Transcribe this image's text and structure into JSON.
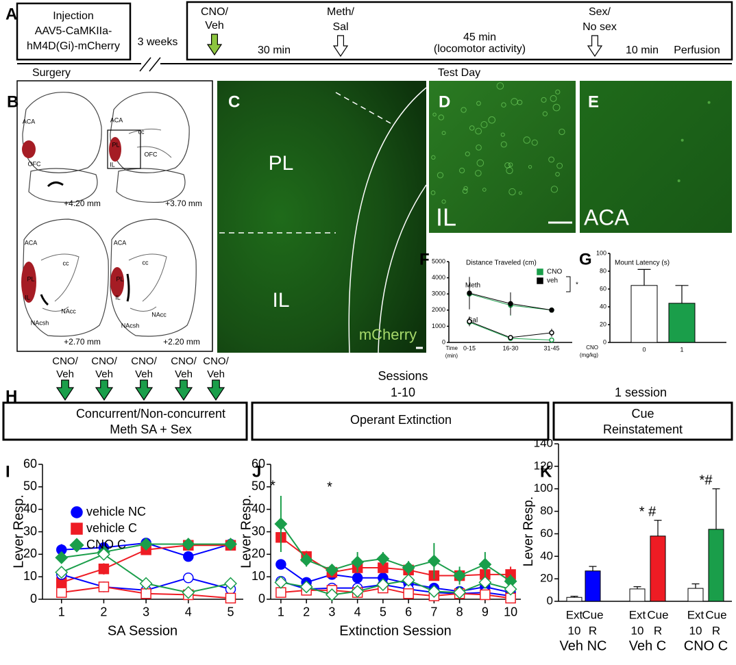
{
  "panels": [
    "A",
    "B",
    "C",
    "D",
    "E",
    "F",
    "G",
    "H",
    "I",
    "J",
    "K"
  ],
  "timeline": {
    "injection": [
      "Injection",
      "AAV5-CaMKIIa-",
      "hM4D(Gi)-mCherry"
    ],
    "gap": "3 weeks",
    "treatment": [
      "CNO/",
      "Veh"
    ],
    "drug": [
      "Meth/",
      "Sal"
    ],
    "test": [
      "Sex/",
      "No sex"
    ],
    "durations": [
      "30 min",
      "45 min",
      "(locomotor activity)",
      "10 min"
    ],
    "end": "Perfusion",
    "phases": [
      "Surgery",
      "Test Day"
    ]
  },
  "atlas": {
    "sections": [
      {
        "level": "+4.20 mm",
        "regions": [
          "ACA",
          "OFC"
        ]
      },
      {
        "level": "+3.70 mm",
        "regions": [
          "ACA",
          "cc",
          "PL",
          "OFC",
          "IL"
        ]
      },
      {
        "level": "+2.70 mm",
        "regions": [
          "ACA",
          "cc",
          "PL",
          "IL",
          "NAcc",
          "NAcsh"
        ]
      },
      {
        "level": "+2.20 mm",
        "regions": [
          "ACA",
          "cc",
          "PL",
          "IL",
          "NAcc",
          "NAcsh"
        ]
      }
    ]
  },
  "micrographs": {
    "C": [
      "PL",
      "IL",
      "mCherry"
    ],
    "D": [
      "IL"
    ],
    "E": [
      "ACA"
    ]
  },
  "schedule": {
    "treatment": [
      "CNO/",
      "Veh"
    ],
    "sessions": [
      "Sessions",
      "1-10"
    ],
    "single": "1 session",
    "phases": [
      [
        "Concurrent/Non-concurrent",
        "Meth SA + Sex"
      ],
      [
        "Operant Extinction"
      ],
      [
        "Cue",
        "Reinstatement"
      ]
    ]
  },
  "chart_data": [
    {
      "type": "line",
      "title": "Distance Traveled (cm)",
      "categories": [
        "0-15",
        "16-30",
        "31-45"
      ],
      "xlabel": [
        "Time",
        "(min)"
      ],
      "ylim": [
        0,
        5000
      ],
      "yticks": [
        0,
        1000,
        2000,
        3000,
        4000,
        5000
      ],
      "series": [
        {
          "name": "CNO",
          "color": "#1a9e4a",
          "marker": "circle",
          "fill": "solid",
          "values": [
            3000,
            2300,
            2000
          ],
          "errors": [
            500,
            650,
            100
          ]
        },
        {
          "name": "veh",
          "color": "#000000",
          "marker": "circle",
          "fill": "solid",
          "values": [
            3050,
            2400,
            2000
          ],
          "errors": [
            1000,
            700,
            150
          ]
        },
        {
          "color": "#1a9e4a",
          "marker": "circle",
          "fill": "open",
          "values": [
            1250,
            250,
            150
          ],
          "errors": [
            200,
            100,
            50
          ]
        },
        {
          "color": "#000000",
          "marker": "circle",
          "fill": "open",
          "values": [
            1300,
            300,
            600
          ],
          "errors": [
            300,
            100,
            250
          ]
        }
      ],
      "annotations": [
        "Meth",
        "Sal",
        "*"
      ]
    },
    {
      "type": "bar",
      "title": "Mount Latency (s)",
      "categories": [
        "0",
        "1"
      ],
      "xlabel": [
        "CNO",
        "(mg/kg)"
      ],
      "values": [
        64,
        44
      ],
      "errors": [
        18,
        20
      ],
      "colors": [
        "#ffffff",
        "#1a9e4a"
      ],
      "ylim": [
        0,
        100
      ],
      "yticks": [
        0,
        20,
        40,
        60,
        80,
        100
      ]
    },
    {
      "type": "line",
      "x": [
        1,
        2,
        3,
        4,
        5
      ],
      "xlim": [
        0.55,
        5.3
      ],
      "xticks": [
        1,
        2,
        3,
        4,
        5
      ],
      "xlabel": "SA Session",
      "ylabel": "Lever Resp.",
      "ylim": [
        0,
        60
      ],
      "yticks": [
        0,
        10,
        20,
        30,
        40,
        50,
        60
      ],
      "series": [
        {
          "name": "vehicle NC",
          "color": "#0000ff",
          "marker": "circle",
          "fill": "solid",
          "values": [
            22,
            23,
            25,
            19,
            24.5
          ],
          "errors": [
            2.5,
            1.5,
            1,
            1,
            1
          ]
        },
        {
          "name": "vehicle C",
          "color": "#ee1c24",
          "marker": "square",
          "fill": "solid",
          "values": [
            7.5,
            13.5,
            22,
            24,
            24
          ],
          "errors": [
            1.5,
            2.5,
            2,
            1,
            1
          ]
        },
        {
          "name": "CNO C",
          "color": "#1a9e4a",
          "marker": "diamond",
          "fill": "solid",
          "values": [
            18.5,
            21,
            24.5,
            24.5,
            24.5
          ],
          "errors": [
            1.5,
            2,
            1,
            1,
            1
          ]
        },
        {
          "color": "#0000ff",
          "marker": "circle",
          "fill": "open",
          "values": [
            11,
            5.5,
            4,
            9.5,
            4.5
          ]
        },
        {
          "color": "#ee1c24",
          "marker": "square",
          "fill": "open",
          "values": [
            3,
            5.5,
            2.5,
            2,
            0.5
          ]
        },
        {
          "color": "#1a9e4a",
          "marker": "diamond",
          "fill": "open",
          "values": [
            12,
            20,
            7,
            3,
            7
          ]
        }
      ]
    },
    {
      "type": "line",
      "x": [
        1,
        2,
        3,
        4,
        5,
        6,
        7,
        8,
        9,
        10
      ],
      "xlim": [
        0.6,
        10.4
      ],
      "xticks": [
        1,
        2,
        3,
        4,
        5,
        6,
        7,
        8,
        9,
        10
      ],
      "xlabel": "Extinction Session",
      "ylabel": "Lever Resp.",
      "ylim": [
        0,
        60
      ],
      "yticks": [
        0,
        10,
        20,
        30,
        40,
        50,
        60
      ],
      "series": [
        {
          "color": "#0000ff",
          "marker": "circle",
          "fill": "solid",
          "values": [
            15.5,
            7.5,
            11,
            9.5,
            9.5,
            7,
            5,
            3.5,
            5.5,
            3
          ],
          "errors": [
            2,
            1,
            1.5,
            1,
            1.5,
            1.5,
            1,
            1,
            1,
            1
          ]
        },
        {
          "color": "#ee1c24",
          "marker": "square",
          "fill": "solid",
          "values": [
            27.5,
            19,
            12,
            14,
            14,
            13,
            10.5,
            10.5,
            11,
            11
          ],
          "errors": [
            2,
            2.5,
            1.5,
            1,
            2,
            2,
            2,
            2,
            2.5,
            3.5
          ]
        },
        {
          "color": "#1a9e4a",
          "marker": "diamond",
          "fill": "solid",
          "values": [
            33.5,
            17.5,
            13,
            16.5,
            18,
            14,
            17,
            10.5,
            15.5,
            8
          ],
          "errors": [
            12.5,
            3,
            2.5,
            4.5,
            3,
            3,
            8,
            4,
            5.5,
            3
          ]
        },
        {
          "color": "#0000ff",
          "marker": "circle",
          "fill": "open",
          "values": [
            8,
            4.5,
            5,
            5,
            6.5,
            4.5,
            3,
            2.5,
            3,
            1.5
          ]
        },
        {
          "color": "#ee1c24",
          "marker": "square",
          "fill": "open",
          "values": [
            3,
            4,
            4,
            3,
            5,
            2.5,
            1.5,
            2.5,
            2,
            0.5
          ]
        },
        {
          "color": "#1a9e4a",
          "marker": "diamond",
          "fill": "open",
          "values": [
            7.5,
            5.5,
            2,
            3.5,
            6.5,
            8.5,
            3.5,
            3,
            7.5,
            4.5
          ]
        }
      ],
      "annotations": [
        "*",
        "*"
      ]
    },
    {
      "type": "bar",
      "categories": [
        "Ext",
        "Cue",
        "Ext",
        "Cue",
        "Ext",
        "Cue"
      ],
      "sublabels": [
        "10",
        "R",
        "10",
        "R",
        "10",
        "R"
      ],
      "groups": [
        "Veh NC",
        "Veh C",
        "CNO C"
      ],
      "values": [
        3.5,
        27,
        11,
        58,
        11.5,
        64
      ],
      "errors": [
        1,
        4,
        2,
        14,
        4,
        36
      ],
      "colors": [
        "#ffffff",
        "#0000ff",
        "#ffffff",
        "#ee1c24",
        "#ffffff",
        "#1a9e4a"
      ],
      "ylabel": "Lever Resp.",
      "ylim": [
        0,
        140
      ],
      "yticks": [
        0,
        20,
        40,
        60,
        80,
        100,
        120,
        140
      ],
      "annotations": [
        "* #",
        "*#"
      ]
    }
  ]
}
